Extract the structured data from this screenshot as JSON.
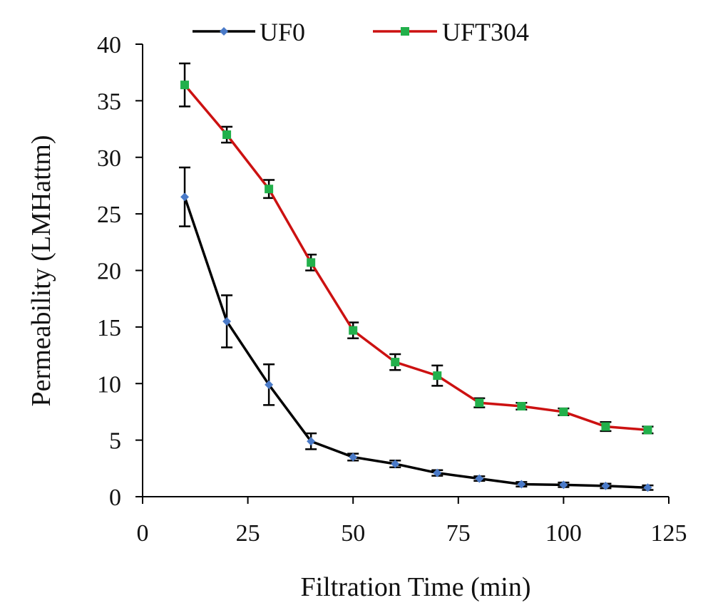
{
  "chart_data": {
    "type": "line",
    "xlabel": "Filtration Time (min)",
    "ylabel": "Permeability  (LMHattm)",
    "xlim": [
      0,
      125
    ],
    "ylim": [
      0,
      40
    ],
    "x_ticks": [
      0,
      25,
      50,
      75,
      100,
      125
    ],
    "y_ticks": [
      0,
      5,
      10,
      15,
      20,
      25,
      30,
      35,
      40
    ],
    "x_tick_labels": [
      "0",
      "25",
      "50",
      "75",
      "100",
      "125"
    ],
    "y_tick_labels": [
      "0",
      "5",
      "10",
      "15",
      "20",
      "25",
      "30",
      "35",
      "40"
    ],
    "grid": false,
    "legend_position": "top",
    "x": [
      10,
      20,
      30,
      40,
      50,
      60,
      70,
      80,
      90,
      100,
      110,
      120
    ],
    "series": [
      {
        "name": "UF0",
        "line_color": "#000000",
        "marker_color": "#4a7ac8",
        "marker": "diamond",
        "values": [
          26.5,
          15.5,
          9.9,
          4.9,
          3.5,
          2.9,
          2.1,
          1.6,
          1.1,
          1.05,
          0.95,
          0.8
        ],
        "error": [
          2.6,
          2.3,
          1.8,
          0.7,
          0.3,
          0.3,
          0.25,
          0.2,
          0.2,
          0.2,
          0.2,
          0.2
        ]
      },
      {
        "name": "UFT304",
        "line_color": "#cc1111",
        "marker_color": "#22b04b",
        "marker": "square",
        "values": [
          36.4,
          32.0,
          27.2,
          20.7,
          14.7,
          11.9,
          10.7,
          8.3,
          8.0,
          7.5,
          6.2,
          5.9
        ],
        "error": [
          1.9,
          0.7,
          0.8,
          0.7,
          0.7,
          0.7,
          0.9,
          0.4,
          0.3,
          0.3,
          0.4,
          0.3
        ]
      }
    ]
  }
}
